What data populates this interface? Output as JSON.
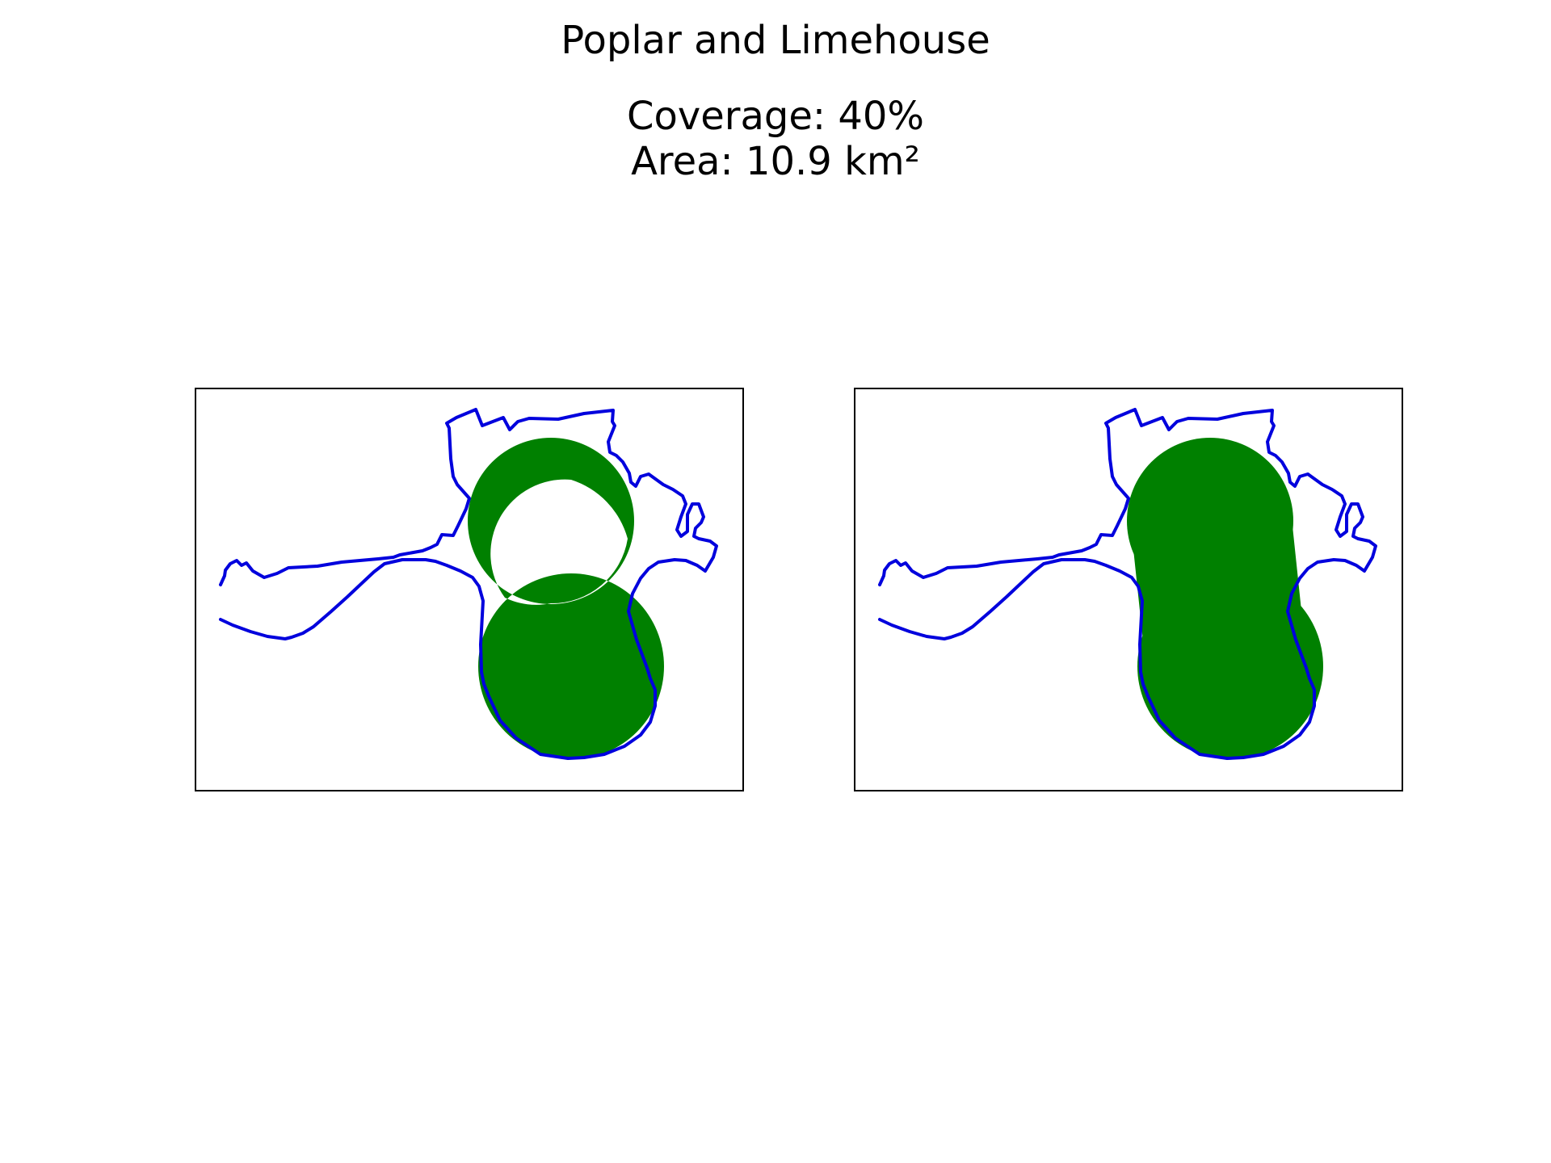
{
  "figure": {
    "title": "Poplar and Limehouse",
    "coverage_text": "Coverage: 40%",
    "area_text": "Area: 10.9 km²"
  },
  "colors": {
    "boundary": "#0000dd",
    "coverage_fill": "#008000",
    "frame": "#000000",
    "background": "#ffffff"
  },
  "panels": [
    {
      "id": "left",
      "coverage_style": "ring"
    },
    {
      "id": "right",
      "coverage_style": "filled"
    }
  ]
}
